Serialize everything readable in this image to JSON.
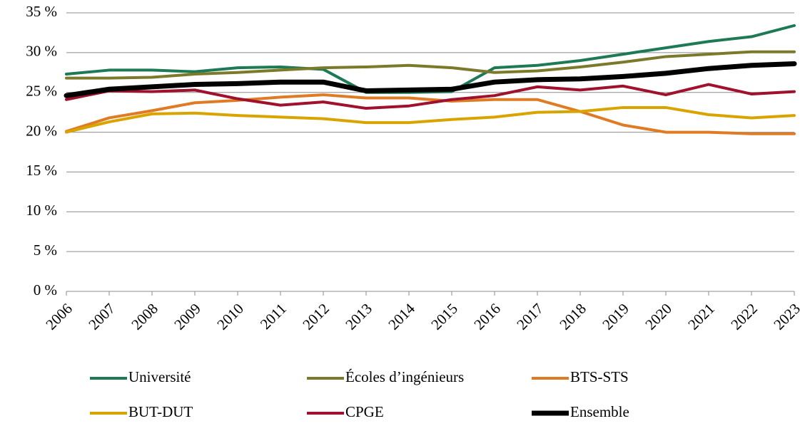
{
  "chart_data": {
    "type": "line",
    "categories": [
      "2006",
      "2007",
      "2008",
      "2009",
      "2010",
      "2011",
      "2012",
      "2013",
      "2014",
      "2015",
      "2016",
      "2017",
      "2018",
      "2019",
      "2020",
      "2021",
      "2022",
      "2023"
    ],
    "series": [
      {
        "name": "Université",
        "color": "#1e7a55",
        "values": [
          27.3,
          27.8,
          27.8,
          27.6,
          28.1,
          28.2,
          27.9,
          25.0,
          25.0,
          25.1,
          28.1,
          28.4,
          29.0,
          29.8,
          30.6,
          31.4,
          32.0,
          33.4
        ]
      },
      {
        "name": "Écoles d’ingénieurs",
        "color": "#7a7a2a",
        "values": [
          26.8,
          26.8,
          26.9,
          27.3,
          27.5,
          27.8,
          28.1,
          28.2,
          28.4,
          28.1,
          27.5,
          27.7,
          28.2,
          28.8,
          29.5,
          29.8,
          30.1,
          30.1
        ]
      },
      {
        "name": "BTS-STS",
        "color": "#e07b25",
        "values": [
          20.1,
          21.8,
          22.7,
          23.7,
          24.0,
          24.4,
          24.7,
          24.3,
          24.3,
          23.9,
          24.1,
          24.1,
          22.6,
          20.9,
          20.0,
          20.0,
          19.8,
          19.8
        ]
      },
      {
        "name": "BUT-DUT",
        "color": "#d9a400",
        "values": [
          20.0,
          21.3,
          22.3,
          22.4,
          22.1,
          21.9,
          21.7,
          21.2,
          21.2,
          21.6,
          21.9,
          22.5,
          22.6,
          23.1,
          23.1,
          22.2,
          21.8,
          22.1
        ]
      },
      {
        "name": "CPGE",
        "color": "#a0112e",
        "values": [
          24.1,
          25.2,
          25.1,
          25.3,
          24.2,
          23.4,
          23.8,
          23.0,
          23.3,
          24.1,
          24.6,
          25.7,
          25.3,
          25.8,
          24.7,
          26.0,
          24.8,
          25.1
        ]
      },
      {
        "name": "Ensemble",
        "color": "#000000",
        "values": [
          24.6,
          25.4,
          25.7,
          26.0,
          26.1,
          26.3,
          26.3,
          25.2,
          25.3,
          25.4,
          26.3,
          26.6,
          26.7,
          27.0,
          27.4,
          28.0,
          28.4,
          28.6
        ]
      }
    ],
    "ylim": [
      0,
      35
    ],
    "yticks": [
      {
        "value": 0,
        "label": "0 %"
      },
      {
        "value": 5,
        "label": "5 %"
      },
      {
        "value": 10,
        "label": "10 %"
      },
      {
        "value": 15,
        "label": "15 %"
      },
      {
        "value": 20,
        "label": "20 %"
      },
      {
        "value": 25,
        "label": "25 %"
      },
      {
        "value": 30,
        "label": "30 %"
      },
      {
        "value": 35,
        "label": "35 %"
      }
    ],
    "grid": true
  }
}
